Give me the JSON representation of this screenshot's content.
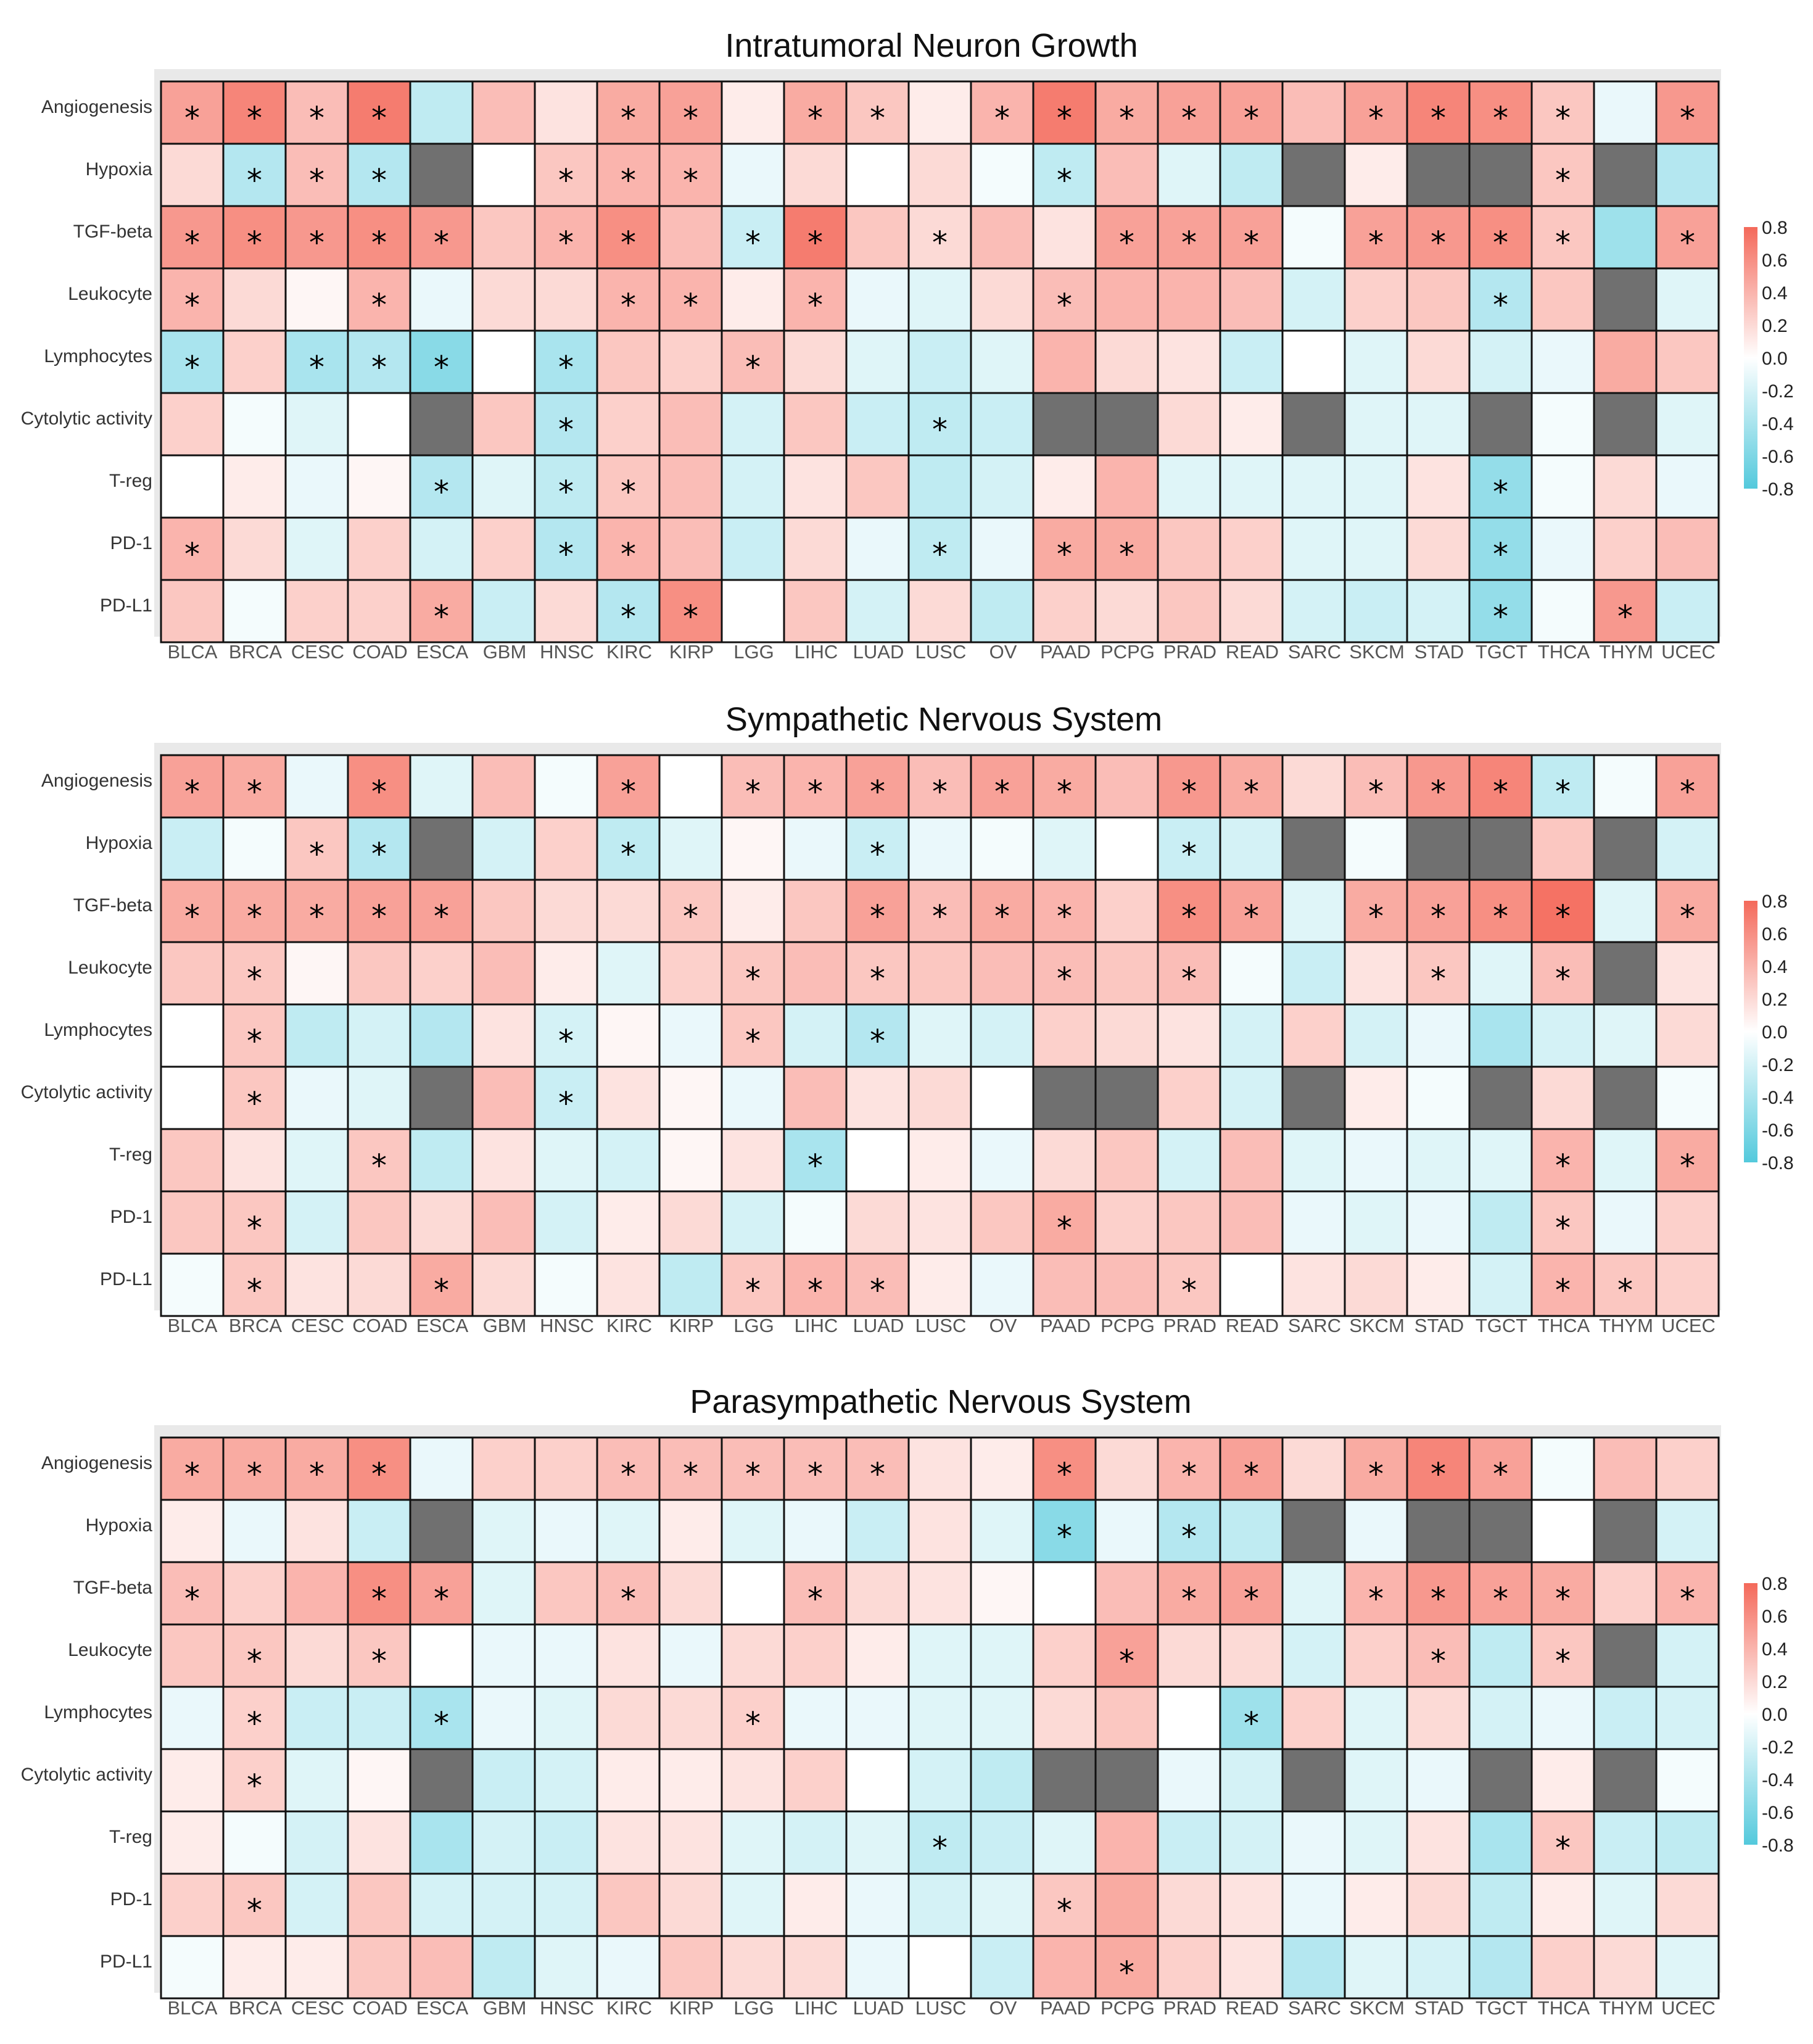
{
  "colors": {
    "positive": "#f4695a",
    "negative": "#53c9dc",
    "missing": "#707070",
    "neutral": "#ffffff",
    "panel": "#e9e9e9"
  },
  "chart_data": [
    {
      "type": "heatmap",
      "title": "Intratumoral Neuron Growth",
      "legend": {
        "ticks": [
          "0.8",
          "0.6",
          "0.4",
          "0.2",
          "0.0",
          "-0.2",
          "-0.4",
          "-0.6",
          "-0.8"
        ],
        "range": [
          -0.8,
          0.8
        ],
        "placement": "right"
      },
      "rows": [
        "Angiogenesis",
        "Hypoxia",
        "TGF-beta",
        "Leukocyte",
        "Lymphocytes",
        "Cytolytic activity",
        "T-reg",
        "PD-1",
        "PD-L1"
      ],
      "columns": [
        "BLCA",
        "BRCA",
        "CESC",
        "COAD",
        "ESCA",
        "GBM",
        "HNSC",
        "KIRC",
        "KIRP",
        "LGG",
        "LIHC",
        "LUAD",
        "LUSC",
        "OV",
        "PAAD",
        "PCPG",
        "PRAD",
        "READ",
        "SARC",
        "SKCM",
        "STAD",
        "TGCT",
        "THCA",
        "THYM",
        "UCEC"
      ],
      "values": [
        [
          0.5,
          0.65,
          0.35,
          0.7,
          -0.3,
          0.35,
          0.15,
          0.45,
          0.5,
          0.1,
          0.45,
          0.3,
          0.1,
          0.4,
          0.7,
          0.45,
          0.5,
          0.5,
          0.35,
          0.5,
          0.65,
          0.6,
          0.3,
          -0.1,
          0.55
        ],
        [
          0.2,
          -0.35,
          0.35,
          -0.35,
          null,
          0.0,
          0.3,
          0.4,
          0.4,
          -0.1,
          0.2,
          0.0,
          0.2,
          -0.05,
          -0.3,
          0.35,
          -0.15,
          -0.3,
          null,
          0.1,
          null,
          null,
          0.3,
          null,
          -0.35
        ],
        [
          0.55,
          0.6,
          0.55,
          0.6,
          0.55,
          0.3,
          0.4,
          0.6,
          0.35,
          -0.25,
          0.7,
          0.3,
          0.2,
          0.35,
          0.15,
          0.5,
          0.5,
          0.5,
          -0.05,
          0.5,
          0.55,
          0.6,
          0.3,
          -0.45,
          0.5
        ],
        [
          0.4,
          0.2,
          0.05,
          0.4,
          -0.1,
          0.2,
          0.2,
          0.4,
          0.4,
          0.1,
          0.4,
          -0.1,
          -0.15,
          0.2,
          0.35,
          0.4,
          0.4,
          0.35,
          -0.2,
          0.25,
          0.3,
          -0.35,
          0.3,
          null,
          -0.15
        ],
        [
          -0.4,
          0.25,
          -0.4,
          -0.35,
          -0.55,
          0.0,
          -0.4,
          0.3,
          0.25,
          0.35,
          0.2,
          -0.15,
          -0.25,
          -0.15,
          0.4,
          0.2,
          0.15,
          -0.25,
          0.0,
          -0.15,
          0.2,
          -0.2,
          -0.1,
          0.45,
          0.3
        ],
        [
          0.25,
          -0.05,
          -0.15,
          0.0,
          null,
          0.3,
          -0.35,
          0.25,
          0.35,
          -0.2,
          0.3,
          -0.25,
          -0.3,
          -0.25,
          null,
          null,
          0.2,
          0.1,
          null,
          -0.15,
          -0.15,
          null,
          -0.05,
          null,
          -0.15
        ],
        [
          0.0,
          0.1,
          -0.1,
          0.05,
          -0.35,
          -0.15,
          -0.3,
          0.3,
          0.35,
          -0.2,
          0.15,
          0.3,
          -0.3,
          -0.2,
          0.1,
          0.4,
          -0.15,
          -0.15,
          -0.15,
          -0.15,
          0.15,
          -0.5,
          -0.05,
          0.2,
          -0.1
        ],
        [
          0.4,
          0.2,
          -0.15,
          0.25,
          -0.2,
          0.25,
          -0.35,
          0.4,
          0.35,
          -0.25,
          0.2,
          -0.1,
          -0.3,
          -0.1,
          0.45,
          0.45,
          0.3,
          0.25,
          -0.15,
          -0.15,
          0.2,
          -0.5,
          -0.1,
          0.25,
          0.35
        ],
        [
          0.3,
          -0.05,
          0.25,
          0.25,
          0.45,
          -0.25,
          0.2,
          -0.35,
          0.6,
          0.0,
          0.3,
          -0.2,
          0.2,
          -0.3,
          0.25,
          0.2,
          0.3,
          0.2,
          -0.2,
          -0.25,
          -0.2,
          -0.5,
          -0.05,
          0.55,
          -0.25
        ]
      ],
      "significant": [
        [
          "BLCA",
          "BRCA",
          "CESC",
          "COAD",
          "KIRC",
          "KIRP",
          "LIHC",
          "LUAD",
          "OV",
          "PAAD",
          "PCPG",
          "PRAD",
          "READ",
          "SKCM",
          "STAD",
          "TGCT",
          "THCA",
          "UCEC"
        ],
        [
          "BRCA",
          "CESC",
          "COAD",
          "HNSC",
          "KIRC",
          "KIRP",
          "PAAD",
          "THCA"
        ],
        [
          "BLCA",
          "BRCA",
          "CESC",
          "COAD",
          "ESCA",
          "HNSC",
          "KIRC",
          "LGG",
          "LIHC",
          "LUSC",
          "PCPG",
          "PRAD",
          "READ",
          "SKCM",
          "STAD",
          "TGCT",
          "THCA",
          "UCEC"
        ],
        [
          "BLCA",
          "COAD",
          "KIRC",
          "KIRP",
          "LIHC",
          "PAAD",
          "TGCT"
        ],
        [
          "BLCA",
          "CESC",
          "COAD",
          "ESCA",
          "HNSC",
          "LGG"
        ],
        [
          "HNSC",
          "LUSC"
        ],
        [
          "ESCA",
          "HNSC",
          "KIRC",
          "TGCT"
        ],
        [
          "BLCA",
          "HNSC",
          "KIRC",
          "LUSC",
          "PAAD",
          "PCPG",
          "TGCT"
        ],
        [
          "ESCA",
          "KIRC",
          "KIRP",
          "TGCT",
          "THYM"
        ]
      ]
    },
    {
      "type": "heatmap",
      "title": "Sympathetic Nervous System",
      "legend": {
        "ticks": [
          "0.8",
          "0.6",
          "0.4",
          "0.2",
          "0.0",
          "-0.2",
          "-0.4",
          "-0.6",
          "-0.8"
        ],
        "range": [
          -0.8,
          0.8
        ],
        "placement": "right"
      },
      "rows": [
        "Angiogenesis",
        "Hypoxia",
        "TGF-beta",
        "Leukocyte",
        "Lymphocytes",
        "Cytolytic activity",
        "T-reg",
        "PD-1",
        "PD-L1"
      ],
      "columns": [
        "BLCA",
        "BRCA",
        "CESC",
        "COAD",
        "ESCA",
        "GBM",
        "HNSC",
        "KIRC",
        "KIRP",
        "LGG",
        "LIHC",
        "LUAD",
        "LUSC",
        "OV",
        "PAAD",
        "PCPG",
        "PRAD",
        "READ",
        "SARC",
        "SKCM",
        "STAD",
        "TGCT",
        "THCA",
        "THYM",
        "UCEC"
      ],
      "values": [
        [
          0.5,
          0.45,
          -0.1,
          0.6,
          -0.15,
          0.35,
          -0.05,
          0.5,
          0.0,
          0.35,
          0.4,
          0.5,
          0.35,
          0.5,
          0.45,
          0.35,
          0.55,
          0.45,
          0.2,
          0.35,
          0.55,
          0.65,
          -0.3,
          -0.05,
          0.5
        ],
        [
          -0.25,
          -0.05,
          0.3,
          -0.35,
          null,
          -0.2,
          0.25,
          -0.3,
          -0.15,
          0.05,
          -0.1,
          -0.25,
          -0.1,
          -0.05,
          -0.15,
          0.0,
          -0.25,
          -0.2,
          null,
          -0.05,
          null,
          null,
          0.3,
          null,
          -0.2
        ],
        [
          0.45,
          0.45,
          0.45,
          0.5,
          0.5,
          0.3,
          0.2,
          0.2,
          0.3,
          0.1,
          0.3,
          0.5,
          0.35,
          0.45,
          0.4,
          0.25,
          0.6,
          0.5,
          -0.15,
          0.45,
          0.5,
          0.6,
          0.75,
          -0.15,
          0.45
        ],
        [
          0.3,
          0.3,
          0.05,
          0.3,
          0.25,
          0.35,
          0.1,
          -0.15,
          0.25,
          0.3,
          0.35,
          0.3,
          0.3,
          0.35,
          0.35,
          0.3,
          0.35,
          -0.05,
          -0.25,
          0.15,
          0.3,
          -0.15,
          0.35,
          null,
          0.15
        ],
        [
          0.0,
          0.3,
          -0.3,
          -0.2,
          -0.35,
          0.15,
          -0.2,
          0.05,
          -0.1,
          0.3,
          -0.2,
          -0.35,
          -0.15,
          -0.2,
          0.25,
          0.2,
          0.15,
          -0.2,
          0.25,
          -0.2,
          -0.1,
          -0.4,
          -0.2,
          -0.15,
          0.2
        ],
        [
          0.0,
          0.3,
          -0.1,
          -0.15,
          null,
          0.35,
          -0.25,
          0.15,
          0.05,
          -0.1,
          0.35,
          0.15,
          0.2,
          0.0,
          null,
          null,
          0.25,
          -0.2,
          null,
          0.1,
          -0.05,
          null,
          0.2,
          null,
          -0.05
        ],
        [
          0.3,
          0.15,
          -0.15,
          0.3,
          -0.3,
          0.15,
          -0.15,
          -0.2,
          0.05,
          0.15,
          -0.4,
          0.0,
          0.1,
          -0.1,
          0.2,
          0.3,
          -0.2,
          0.35,
          -0.15,
          -0.1,
          -0.15,
          -0.15,
          0.4,
          -0.15,
          0.45
        ],
        [
          0.3,
          0.3,
          -0.2,
          0.3,
          0.2,
          0.35,
          -0.2,
          0.1,
          0.2,
          -0.2,
          -0.05,
          0.2,
          0.15,
          0.3,
          0.45,
          0.25,
          0.3,
          0.35,
          -0.1,
          -0.15,
          -0.1,
          -0.3,
          0.3,
          -0.1,
          0.25
        ],
        [
          -0.05,
          0.3,
          0.15,
          0.2,
          0.45,
          0.2,
          -0.05,
          0.15,
          -0.3,
          0.3,
          0.4,
          0.35,
          0.1,
          -0.1,
          0.35,
          0.35,
          0.3,
          0.0,
          0.15,
          0.2,
          0.1,
          -0.2,
          0.4,
          0.3,
          0.25
        ]
      ],
      "significant": [
        [
          "BLCA",
          "BRCA",
          "COAD",
          "KIRC",
          "LGG",
          "LIHC",
          "LUAD",
          "LUSC",
          "OV",
          "PAAD",
          "PRAD",
          "READ",
          "SKCM",
          "STAD",
          "TGCT",
          "THCA",
          "UCEC"
        ],
        [
          "CESC",
          "COAD",
          "KIRC",
          "LUAD",
          "PRAD"
        ],
        [
          "BLCA",
          "BRCA",
          "CESC",
          "COAD",
          "ESCA",
          "KIRP",
          "LUAD",
          "LUSC",
          "OV",
          "PAAD",
          "PRAD",
          "READ",
          "SKCM",
          "STAD",
          "TGCT",
          "THCA",
          "UCEC"
        ],
        [
          "BRCA",
          "LGG",
          "LUAD",
          "PAAD",
          "PRAD",
          "STAD",
          "THCA"
        ],
        [
          "BRCA",
          "HNSC",
          "LGG",
          "LUAD"
        ],
        [
          "BRCA",
          "HNSC"
        ],
        [
          "COAD",
          "LIHC",
          "THCA",
          "UCEC"
        ],
        [
          "BRCA",
          "PAAD",
          "THCA"
        ],
        [
          "BRCA",
          "ESCA",
          "LGG",
          "LIHC",
          "LUAD",
          "PRAD",
          "THCA",
          "THYM"
        ]
      ]
    },
    {
      "type": "heatmap",
      "title": "Parasympathetic Nervous System",
      "legend": {
        "ticks": [
          "0.8",
          "0.6",
          "0.4",
          "0.2",
          "0.0",
          "-0.2",
          "-0.4",
          "-0.6",
          "-0.8"
        ],
        "range": [
          -0.8,
          0.8
        ],
        "placement": "right"
      },
      "rows": [
        "Angiogenesis",
        "Hypoxia",
        "TGF-beta",
        "Leukocyte",
        "Lymphocytes",
        "Cytolytic activity",
        "T-reg",
        "PD-1",
        "PD-L1"
      ],
      "columns": [
        "BLCA",
        "BRCA",
        "CESC",
        "COAD",
        "ESCA",
        "GBM",
        "HNSC",
        "KIRC",
        "KIRP",
        "LGG",
        "LIHC",
        "LUAD",
        "LUSC",
        "OV",
        "PAAD",
        "PCPG",
        "PRAD",
        "READ",
        "SARC",
        "SKCM",
        "STAD",
        "TGCT",
        "THCA",
        "THYM",
        "UCEC"
      ],
      "values": [
        [
          0.45,
          0.45,
          0.45,
          0.6,
          -0.1,
          0.25,
          0.25,
          0.35,
          0.35,
          0.35,
          0.35,
          0.35,
          0.15,
          0.1,
          0.6,
          0.2,
          0.4,
          0.5,
          0.2,
          0.45,
          0.65,
          0.5,
          -0.05,
          0.35,
          0.25
        ],
        [
          0.1,
          -0.1,
          0.15,
          -0.25,
          null,
          -0.15,
          -0.1,
          -0.15,
          0.1,
          -0.15,
          -0.1,
          -0.25,
          0.15,
          -0.15,
          -0.55,
          -0.1,
          -0.35,
          -0.3,
          null,
          -0.1,
          null,
          null,
          0.0,
          null,
          -0.2
        ],
        [
          0.35,
          0.25,
          0.4,
          0.6,
          0.5,
          -0.15,
          0.3,
          0.35,
          0.2,
          0.0,
          0.35,
          0.2,
          0.15,
          0.05,
          0.0,
          0.35,
          0.45,
          0.5,
          -0.15,
          0.4,
          0.55,
          0.5,
          0.45,
          0.25,
          0.4
        ],
        [
          0.3,
          0.3,
          0.2,
          0.3,
          0.0,
          -0.1,
          -0.1,
          0.15,
          -0.1,
          0.2,
          0.25,
          0.1,
          -0.15,
          -0.15,
          0.25,
          0.5,
          0.2,
          0.2,
          -0.2,
          0.25,
          0.35,
          -0.3,
          0.3,
          null,
          -0.2
        ],
        [
          -0.1,
          0.25,
          -0.25,
          -0.25,
          -0.4,
          -0.1,
          -0.15,
          0.2,
          0.2,
          0.25,
          -0.1,
          -0.1,
          -0.15,
          -0.15,
          0.2,
          0.3,
          0.0,
          -0.45,
          0.25,
          -0.15,
          0.2,
          -0.2,
          -0.1,
          -0.25,
          -0.2
        ],
        [
          0.1,
          0.25,
          -0.15,
          0.05,
          null,
          -0.25,
          -0.2,
          0.1,
          0.1,
          0.15,
          0.25,
          0.0,
          -0.2,
          -0.3,
          null,
          null,
          -0.1,
          -0.2,
          null,
          -0.15,
          -0.1,
          null,
          0.1,
          null,
          -0.05
        ],
        [
          0.1,
          -0.05,
          -0.2,
          0.15,
          -0.4,
          -0.2,
          -0.25,
          0.15,
          0.15,
          -0.15,
          -0.2,
          -0.15,
          -0.3,
          -0.25,
          -0.15,
          0.4,
          -0.25,
          -0.2,
          -0.1,
          -0.15,
          0.15,
          -0.4,
          0.3,
          -0.25,
          -0.3
        ],
        [
          0.25,
          0.3,
          -0.2,
          0.3,
          -0.2,
          -0.2,
          -0.2,
          0.3,
          0.2,
          -0.15,
          0.1,
          -0.1,
          -0.2,
          -0.15,
          0.3,
          0.45,
          0.2,
          0.15,
          -0.1,
          0.1,
          0.2,
          -0.3,
          0.1,
          -0.15,
          0.2
        ],
        [
          -0.05,
          0.1,
          0.1,
          0.3,
          0.35,
          -0.3,
          -0.15,
          -0.1,
          0.3,
          0.2,
          0.2,
          -0.1,
          0.0,
          -0.25,
          0.4,
          0.45,
          0.25,
          0.15,
          -0.35,
          -0.15,
          -0.2,
          -0.35,
          0.25,
          0.2,
          -0.15
        ]
      ],
      "significant": [
        [
          "BLCA",
          "BRCA",
          "CESC",
          "COAD",
          "KIRC",
          "KIRP",
          "LGG",
          "LIHC",
          "LUAD",
          "PAAD",
          "PRAD",
          "READ",
          "SKCM",
          "STAD",
          "TGCT"
        ],
        [
          "PAAD",
          "PRAD"
        ],
        [
          "BLCA",
          "COAD",
          "ESCA",
          "KIRC",
          "LIHC",
          "PRAD",
          "READ",
          "SKCM",
          "STAD",
          "TGCT",
          "THCA",
          "UCEC"
        ],
        [
          "BRCA",
          "COAD",
          "PCPG",
          "STAD",
          "THCA"
        ],
        [
          "BRCA",
          "ESCA",
          "LGG",
          "READ"
        ],
        [
          "BRCA"
        ],
        [
          "LUSC",
          "THCA"
        ],
        [
          "BRCA",
          "PAAD"
        ],
        [
          "PCPG"
        ]
      ]
    }
  ]
}
